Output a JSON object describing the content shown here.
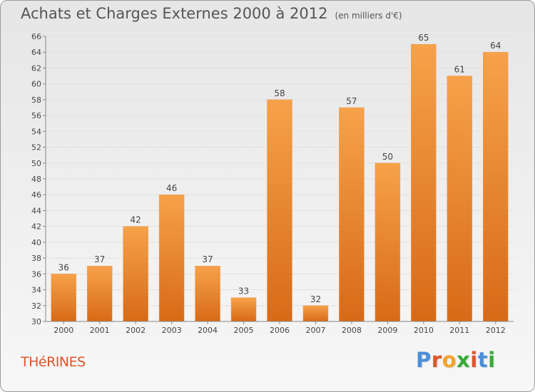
{
  "header": {
    "title": "Achats et Charges Externes 2000 à 2012",
    "subtitle": "(en milliers d'€)"
  },
  "footer": {
    "commune": "THéRINES",
    "logo_text": "Proxiti"
  },
  "colors": {
    "bar_top": "#f6a24a",
    "bar_bottom": "#d86a16",
    "axis": "#888888",
    "grid": "#e0e0e0",
    "commune_text": "#e0552b",
    "logo_letters": [
      "#4a8fd8",
      "#e0552b",
      "#f3a330",
      "#3aaa3a",
      "#e0552b",
      "#4a8fd8",
      "#3aaa3a"
    ]
  },
  "chart_data": {
    "type": "bar",
    "title": "Achats et Charges Externes 2000 à 2012",
    "subtitle": "(en milliers d'€)",
    "categories": [
      "2000",
      "2001",
      "2002",
      "2003",
      "2004",
      "2005",
      "2006",
      "2007",
      "2008",
      "2009",
      "2010",
      "2011",
      "2012"
    ],
    "values": [
      36,
      37,
      42,
      46,
      37,
      33,
      58,
      32,
      57,
      50,
      65,
      61,
      64
    ],
    "ylim": [
      30,
      66
    ],
    "yticks": [
      30,
      32,
      34,
      36,
      38,
      40,
      42,
      44,
      46,
      48,
      50,
      52,
      54,
      56,
      58,
      60,
      62,
      64,
      66
    ],
    "xlabel": "",
    "ylabel": "",
    "grid": true,
    "data_labels": true
  }
}
